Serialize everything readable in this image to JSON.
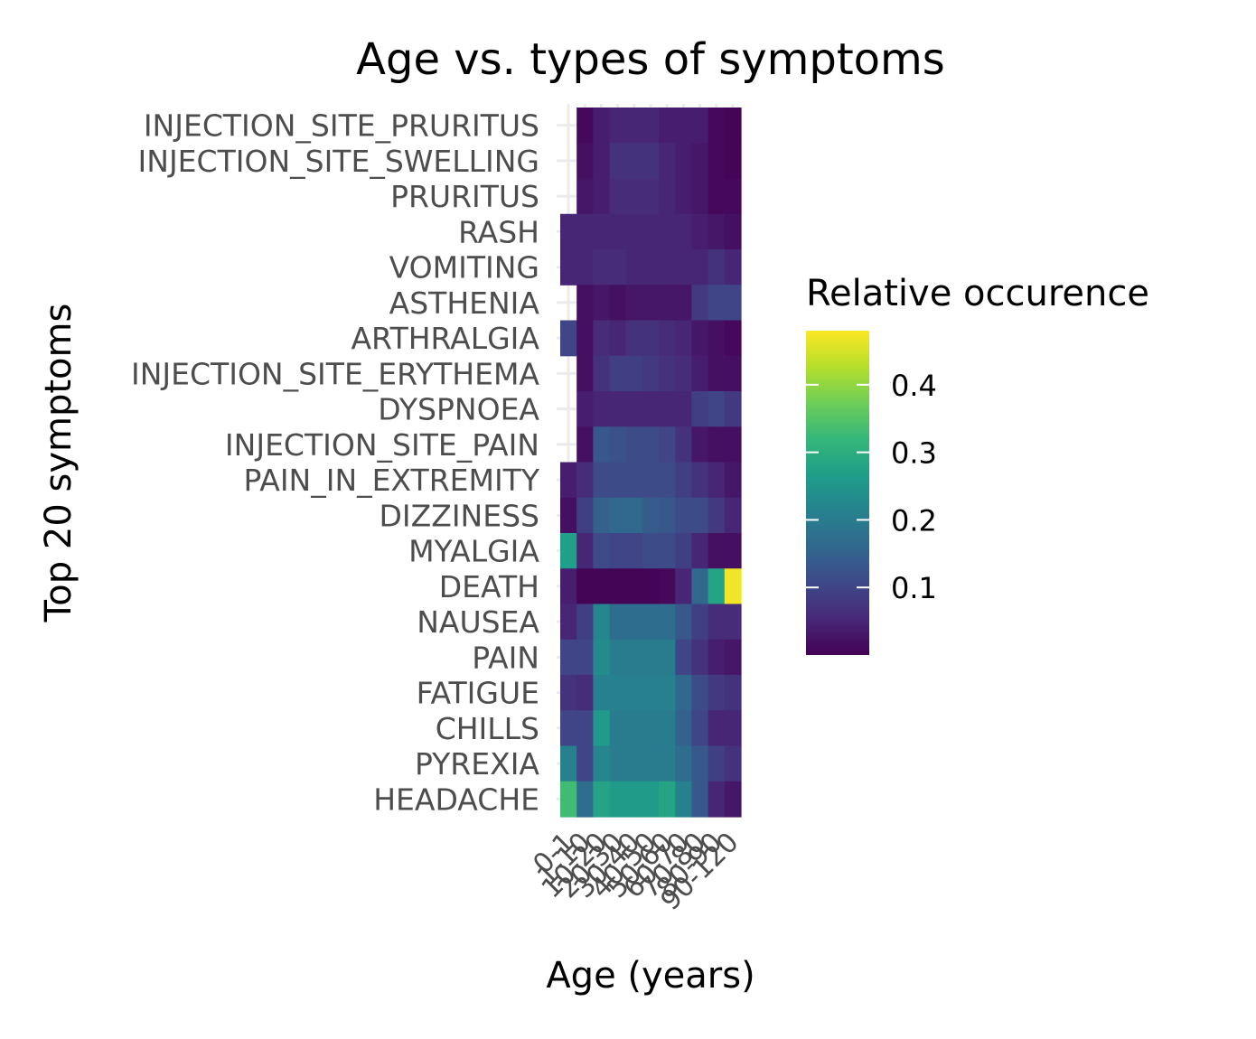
{
  "chart_data": {
    "type": "heatmap",
    "title": "Age vs. types of symptoms",
    "xlabel": "Age (years)",
    "ylabel": "Top 20 symptoms",
    "x_categories": [
      "0-1",
      "1-10",
      "10-20",
      "20-30",
      "30-40",
      "40-50",
      "50-60",
      "60-70",
      "70-80",
      "80-90",
      "90-120"
    ],
    "y_categories": [
      "INJECTION_SITE_PRURITUS",
      "INJECTION_SITE_SWELLING",
      "PRURITUS",
      "RASH",
      "VOMITING",
      "ASTHENIA",
      "ARTHRALGIA",
      "INJECTION_SITE_ERYTHEMA",
      "DYSPNOEA",
      "INJECTION_SITE_PAIN",
      "PAIN_IN_EXTREMITY",
      "DIZZINESS",
      "MYALGIA",
      "DEATH",
      "NAUSEA",
      "PAIN",
      "FATIGUE",
      "CHILLS",
      "PYREXIA",
      "HEADACHE"
    ],
    "values": [
      [
        null,
        0.01,
        0.04,
        0.05,
        0.05,
        0.05,
        0.04,
        0.04,
        0.04,
        0.01,
        0.005
      ],
      [
        null,
        0.02,
        0.04,
        0.07,
        0.07,
        0.07,
        0.05,
        0.04,
        0.03,
        0.01,
        0.005
      ],
      [
        null,
        0.03,
        0.04,
        0.06,
        0.06,
        0.06,
        0.05,
        0.04,
        0.03,
        0.01,
        0.01
      ],
      [
        0.05,
        0.05,
        0.05,
        0.05,
        0.05,
        0.05,
        0.05,
        0.05,
        0.04,
        0.03,
        0.02
      ],
      [
        0.05,
        0.05,
        0.06,
        0.06,
        0.05,
        0.05,
        0.05,
        0.05,
        0.05,
        0.07,
        0.05
      ],
      [
        null,
        0.02,
        0.03,
        0.02,
        0.03,
        0.03,
        0.03,
        0.03,
        0.08,
        0.1,
        0.1
      ],
      [
        0.1,
        0.02,
        0.06,
        0.05,
        0.07,
        0.07,
        0.06,
        0.05,
        0.03,
        0.02,
        0.01
      ],
      [
        null,
        0.02,
        0.07,
        0.09,
        0.09,
        0.08,
        0.07,
        0.06,
        0.04,
        0.02,
        0.02
      ],
      [
        null,
        0.04,
        0.05,
        0.05,
        0.05,
        0.05,
        0.05,
        0.05,
        0.09,
        0.1,
        0.08
      ],
      [
        null,
        0.02,
        0.13,
        0.12,
        0.11,
        0.11,
        0.1,
        0.07,
        0.03,
        0.02,
        0.02
      ],
      [
        0.04,
        0.06,
        0.11,
        0.11,
        0.11,
        0.11,
        0.11,
        0.09,
        0.07,
        0.05,
        0.03
      ],
      [
        0.02,
        0.09,
        0.15,
        0.16,
        0.16,
        0.14,
        0.13,
        0.11,
        0.11,
        0.08,
        0.05
      ],
      [
        0.27,
        0.05,
        0.11,
        0.1,
        0.1,
        0.11,
        0.11,
        0.09,
        0.05,
        0.02,
        0.02
      ],
      [
        0.04,
        0.005,
        0.005,
        0.005,
        0.005,
        0.005,
        0.01,
        0.05,
        0.16,
        0.28,
        0.47
      ],
      [
        0.05,
        0.09,
        0.22,
        0.17,
        0.17,
        0.17,
        0.17,
        0.13,
        0.09,
        0.06,
        0.06
      ],
      [
        0.1,
        0.1,
        0.23,
        0.2,
        0.2,
        0.2,
        0.2,
        0.1,
        0.07,
        0.04,
        0.03
      ],
      [
        0.07,
        0.06,
        0.21,
        0.21,
        0.21,
        0.21,
        0.21,
        0.16,
        0.11,
        0.08,
        0.07
      ],
      [
        0.1,
        0.1,
        0.26,
        0.2,
        0.2,
        0.2,
        0.2,
        0.15,
        0.1,
        0.05,
        0.05
      ],
      [
        0.21,
        0.1,
        0.22,
        0.2,
        0.2,
        0.2,
        0.2,
        0.17,
        0.13,
        0.09,
        0.07
      ],
      [
        0.33,
        0.17,
        0.28,
        0.26,
        0.26,
        0.26,
        0.28,
        0.21,
        0.13,
        0.05,
        0.03
      ]
    ],
    "colorscale": "viridis",
    "zlim": [
      0.0,
      0.48
    ],
    "legend": {
      "title": "Relative occurence",
      "ticks": [
        "0.1",
        "0.2",
        "0.3",
        "0.4"
      ],
      "placement": "right"
    },
    "grid": true
  }
}
